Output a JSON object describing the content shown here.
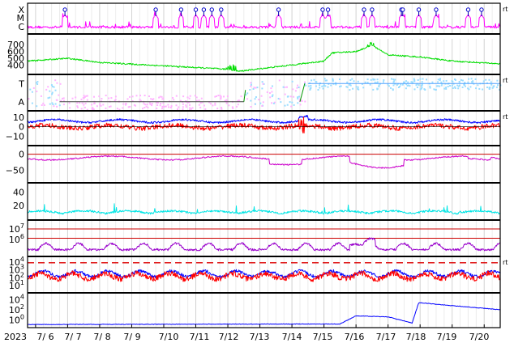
{
  "chart_data": [
    {
      "type": "scatter",
      "y_tick_labels": [
        "X",
        "M",
        "C"
      ],
      "marker_dates": [
        "7/6 22:00",
        "7/9 18:00",
        "7/10 13:00",
        "7/11 0:00",
        "7/11 6:00",
        "7/11 12:00",
        "7/11 19:00",
        "7/13 14:00",
        "7/14 23:00",
        "7/15 3:00",
        "7/16 6:00",
        "7/16 12:00",
        "7/17 10:00",
        "7/17 11:00",
        "7/17 23:00",
        "7/18 12:00",
        "7/19 12:00",
        "7/19 22:00"
      ],
      "right_label": "rt"
    },
    {
      "type": "line",
      "y_tick_labels": [
        "700",
        "600",
        "500",
        "400"
      ],
      "ylim": [
        300,
        750
      ],
      "series_color": "#00dd00",
      "levels": [
        {
          "x": "7/5 18:00",
          "y": 460
        },
        {
          "x": "7/7 0:00",
          "y": 500
        },
        {
          "x": "7/8 0:00",
          "y": 440
        },
        {
          "x": "7/10 0:00",
          "y": 390
        },
        {
          "x": "7/12 0:00",
          "y": 340
        },
        {
          "x": "7/12 8:00",
          "y": 310
        },
        {
          "x": "7/14 20:00",
          "y": 450
        },
        {
          "x": "7/15 0:00",
          "y": 460
        },
        {
          "x": "7/15 6:00",
          "y": 580
        },
        {
          "x": "7/16 0:00",
          "y": 600
        },
        {
          "x": "7/16 12:00",
          "y": 690
        },
        {
          "x": "7/17 0:00",
          "y": 550
        },
        {
          "x": "7/18 0:00",
          "y": 520
        },
        {
          "x": "7/19 0:00",
          "y": 460
        },
        {
          "x": "7/20 12:00",
          "y": 420
        }
      ]
    },
    {
      "type": "scatter",
      "y_tick_labels": [
        "T",
        "A"
      ],
      "right_label": "rt",
      "colors": {
        "toward": "#99ddff",
        "away": "#ffb3ff"
      },
      "level_toward": 0.75,
      "level_away": 0.25,
      "away_interval": [
        "7/6 18:00",
        "7/12 12:00"
      ],
      "toward_interval": [
        "7/14 12:00",
        "7/20 12:00"
      ]
    },
    {
      "type": "line",
      "y_tick_labels": [
        "10",
        "0",
        "−10"
      ],
      "ylim": [
        -18,
        15
      ],
      "right_label": "rt",
      "series": [
        {
          "color": "#0000ff",
          "level": 6
        },
        {
          "color": "#ff0000",
          "level": 0
        }
      ]
    },
    {
      "type": "line",
      "y_tick_labels": [
        "0",
        "−50"
      ],
      "ylim": [
        -85,
        22
      ],
      "series_color": "#cc00cc",
      "reference_line_color": "#cc0000",
      "reference_level": 0
    },
    {
      "type": "line",
      "y_tick_labels": [
        "40",
        "20"
      ],
      "ylim": [
        0,
        52
      ],
      "series_color": "#00e5e5"
    },
    {
      "type": "line",
      "y_tick_labels": [
        "10^7",
        "10^6"
      ],
      "log_scale": true,
      "ylim_exp": [
        4.5,
        7.7
      ],
      "series_color": "#9900cc",
      "threshold_exponents": [
        7,
        6.1
      ],
      "threshold_color": "#cc0000"
    },
    {
      "type": "line",
      "y_tick_labels": [
        "10^4",
        "10^3",
        "10^2",
        "10^1"
      ],
      "log_scale": true,
      "ylim_exp": [
        0.3,
        4.5
      ],
      "right_label": "rt",
      "dashed_threshold_exponent": 3.9,
      "series": [
        {
          "color": "#0000ff",
          "level_exp": 2.5
        },
        {
          "color": "#ff0000",
          "level_exp": 2.2
        }
      ]
    },
    {
      "type": "line",
      "y_tick_labels": [
        "10^4",
        "10^2",
        "10^0"
      ],
      "log_scale": true,
      "ylim_exp": [
        -1.2,
        5.0
      ],
      "series_color": "#0000ff",
      "levels": [
        {
          "x": "7/5 18:00",
          "y_exp": -0.9
        },
        {
          "x": "7/15 12:00",
          "y_exp": -0.8
        },
        {
          "x": "7/16 0:00",
          "y_exp": 0.8
        },
        {
          "x": "7/17 0:00",
          "y_exp": 0.6
        },
        {
          "x": "7/17 18:00",
          "y_exp": -0.6
        },
        {
          "x": "7/17 23:00",
          "y_exp": 3.4
        },
        {
          "x": "7/19 0:00",
          "y_exp": 2.8
        },
        {
          "x": "7/20 12:00",
          "y_exp": 2.0
        }
      ]
    }
  ],
  "x_axis": {
    "year_label": "2023",
    "tick_labels": [
      "7/ 6",
      "7/ 7",
      "7/ 8",
      "7/ 9",
      "7/10",
      "7/11",
      "7/12",
      "7/13",
      "7/14",
      "7/15",
      "7/16",
      "7/17",
      "7/18",
      "7/19",
      "7/20"
    ]
  }
}
